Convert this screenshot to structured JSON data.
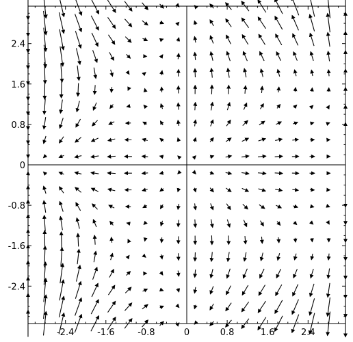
{
  "chart_data": {
    "type": "vector_field",
    "title": "",
    "xlabel": "",
    "ylabel": "",
    "xlim": [
      -3.14,
      3.14
    ],
    "ylim": [
      -3.14,
      3.14
    ],
    "grid": false,
    "legend": "none",
    "field": {
      "x_samples": 20,
      "y_samples": 20,
      "x_range": [
        -3.14,
        3.14
      ],
      "y_range": [
        -3.14,
        3.14
      ],
      "fx": "sin(x)*cos(y)",
      "fy": "sin(y)*cos(x)+y*x/3"
    },
    "x_ticks": [
      {
        "value": -2.4,
        "label": "-2.4"
      },
      {
        "value": -1.6,
        "label": "-1.6"
      },
      {
        "value": -0.8,
        "label": "-0.8"
      },
      {
        "value": 0,
        "label": "0"
      },
      {
        "value": 0.8,
        "label": "0.8"
      },
      {
        "value": 1.6,
        "label": "1.6"
      },
      {
        "value": 2.4,
        "label": "2.4"
      }
    ],
    "y_ticks": [
      {
        "value": 2.4,
        "label": "2.4"
      },
      {
        "value": 1.6,
        "label": "1.6"
      },
      {
        "value": 0.8,
        "label": "0.8"
      },
      {
        "value": 0,
        "label": "0"
      },
      {
        "value": -0.8,
        "label": "-0.8"
      },
      {
        "value": -1.6,
        "label": "-1.6"
      },
      {
        "value": -2.4,
        "label": "-2.4"
      }
    ],
    "arrow_color": "#000000",
    "axis_color": "#000000"
  }
}
